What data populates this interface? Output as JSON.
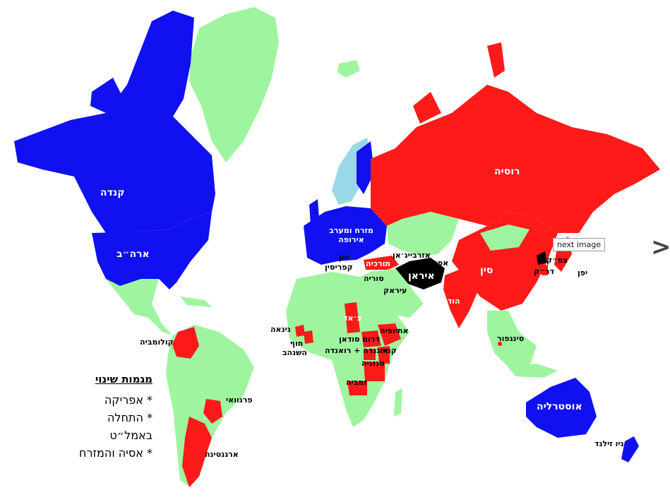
{
  "colors": {
    "blue": "#1010f0",
    "red": "#ff1a1a",
    "green": "#9ff59f",
    "black": "#000000",
    "light_blue": "#9ad8e8"
  },
  "labels": {
    "canada": "קנדה",
    "usa": "ארה״ב",
    "russia": "רוסיה",
    "china": "סין",
    "india": "הודו",
    "iran": "איראן",
    "turkey": "תורכיה",
    "europe": "מזרח ומערב אירופה",
    "greece": "יוון",
    "cyprus": "קפריסין",
    "syria": "סוריה",
    "iraq": "עיראק",
    "azerbaijan": "אזרבייג׳אן",
    "afghanistan": "אפגניסטאן",
    "north_korea": "צפ״ק",
    "south_korea": "דר״ק",
    "japan": "יפן",
    "singapore": "סינגפור",
    "australia": "אוסטרליה",
    "new_zealand": "ניו זילנד",
    "colombia": "קולומביה",
    "paraguay": "פרגוואי",
    "argentina": "ארגנטינה",
    "guinea": "גינאה",
    "ivory_coast": "חוף השנהב",
    "chad": "צ׳אד",
    "ethiopia": "אתיופיה",
    "south_sudan": "דרום סודאן",
    "kenya": "קניה",
    "uganda_rwanda": "אוגנדה + רואנדה",
    "tanzania": "טנזניה",
    "zambia": "זמביה"
  },
  "legend": {
    "title": "מגמות שינוי",
    "items": [
      "* אפריקה",
      "* התחלה באמל״ט",
      "* אסיה והמזרח"
    ]
  },
  "ui": {
    "tooltip": "next image",
    "next_arrow": ">"
  }
}
